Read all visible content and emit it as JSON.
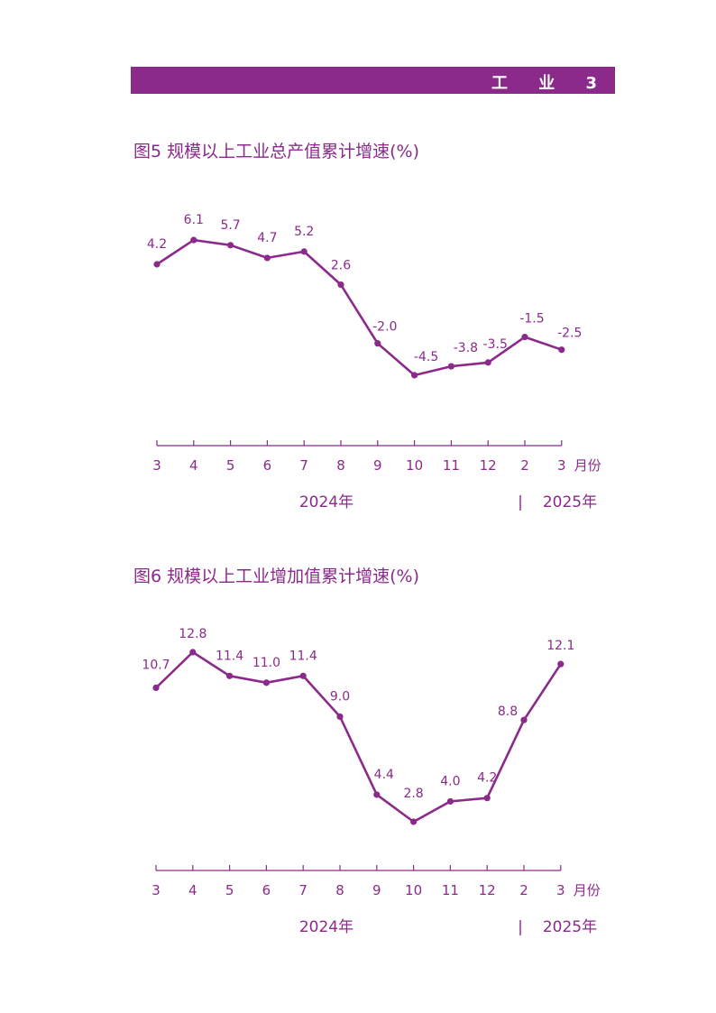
{
  "header": {
    "title": "工 业 3"
  },
  "colors": {
    "accent": "#8b2a8b",
    "header_bg": "#8b2a8b",
    "header_text": "#ffffff"
  },
  "chart_data": [
    {
      "type": "line",
      "title": "图5  规模以上工业总产值累计增速(%)",
      "categories": [
        "3",
        "4",
        "5",
        "6",
        "7",
        "8",
        "9",
        "10",
        "11",
        "12",
        "2",
        "3"
      ],
      "values": [
        4.2,
        6.1,
        5.7,
        4.7,
        5.2,
        2.6,
        -2.0,
        -4.5,
        -3.8,
        -3.5,
        -1.5,
        -2.5
      ],
      "data_labels": [
        "4.2",
        "6.1",
        "5.7",
        "4.7",
        "5.2",
        "2.6",
        "-2.0",
        "-4.5",
        "-3.8",
        "-3.5",
        "-1.5",
        "-2.5"
      ],
      "x_unit": "月份",
      "year_labels": [
        "2024年",
        "2025年"
      ],
      "year_separator": "|",
      "grid": false,
      "legend": "none"
    },
    {
      "type": "line",
      "title": "图6  规模以上工业增加值累计增速(%)",
      "categories": [
        "3",
        "4",
        "5",
        "6",
        "7",
        "8",
        "9",
        "10",
        "11",
        "12",
        "2",
        "3"
      ],
      "values": [
        10.7,
        12.8,
        11.4,
        11.0,
        11.4,
        9.0,
        4.4,
        2.8,
        4.0,
        4.2,
        8.8,
        12.1
      ],
      "data_labels": [
        "10.7",
        "12.8",
        "11.4",
        "11.0",
        "11.4",
        "9.0",
        "4.4",
        "2.8",
        "4.0",
        "4.2",
        "8.8",
        "12.1"
      ],
      "x_unit": "月份",
      "year_labels": [
        "2024年",
        "2025年"
      ],
      "year_separator": "|",
      "grid": false,
      "legend": "none"
    }
  ]
}
